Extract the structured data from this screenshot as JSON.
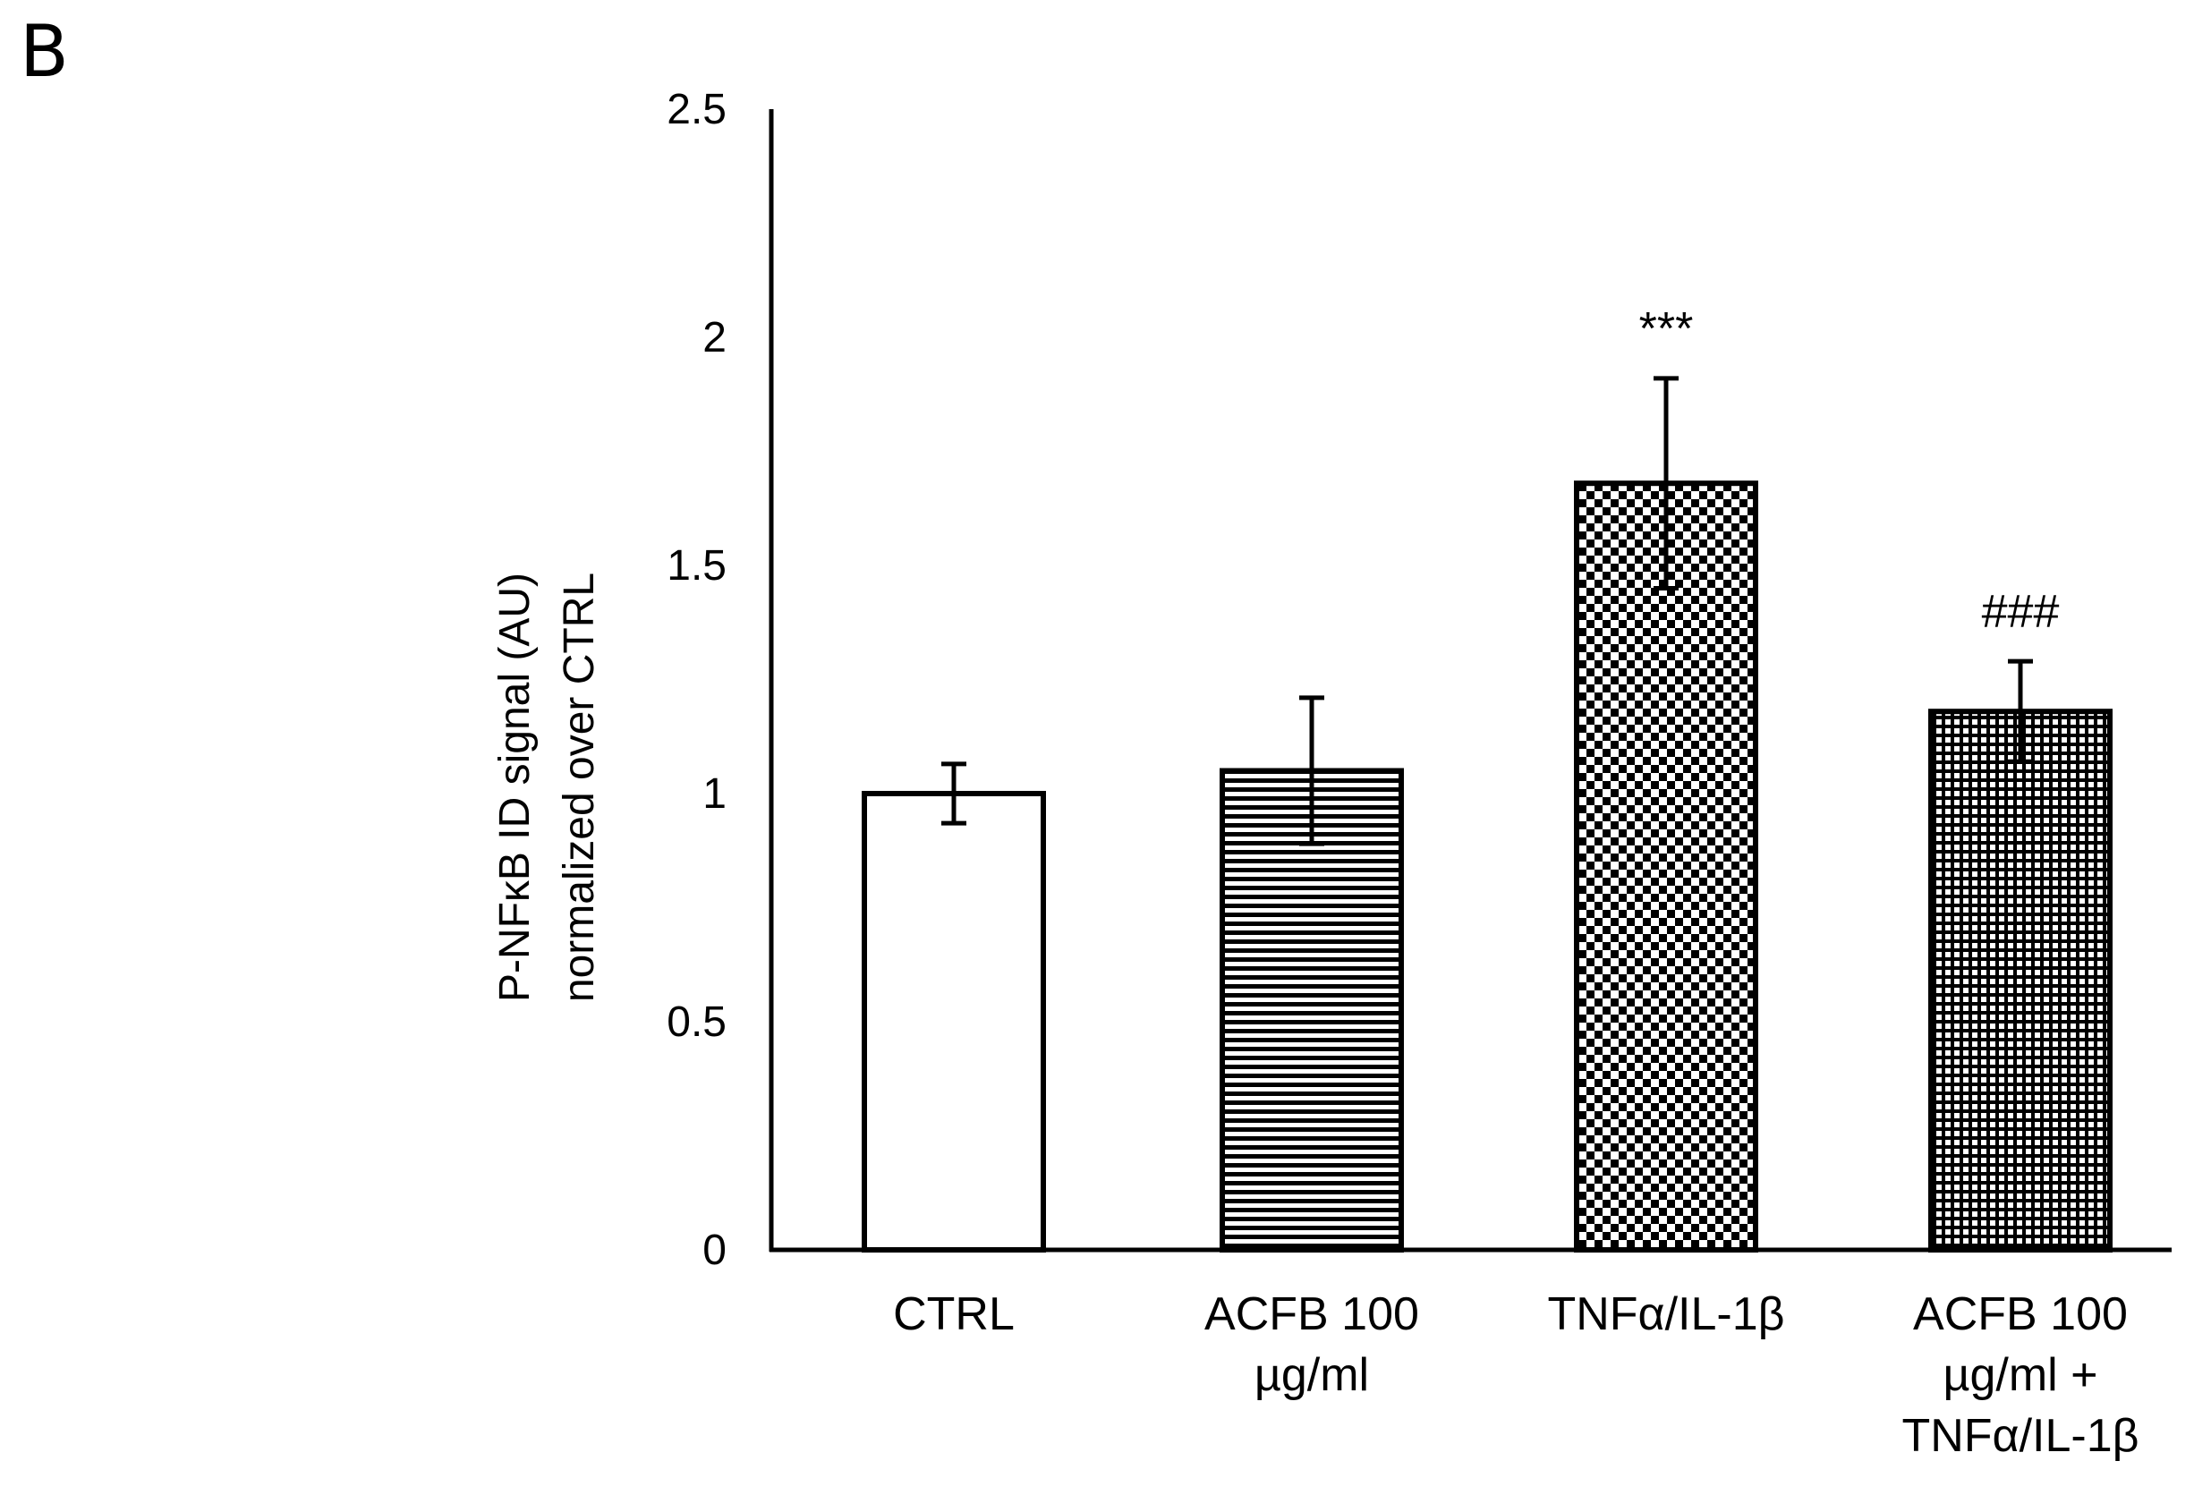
{
  "panel_label": "B",
  "chart_data": {
    "type": "bar",
    "title": "",
    "xlabel": "",
    "ylabel_lines": [
      "P-NFκB ID signal (AU)",
      "normalized over CTRL"
    ],
    "ylim": [
      0,
      2.5
    ],
    "yticks": [
      0,
      0.5,
      1,
      1.5,
      2,
      2.5
    ],
    "ytick_labels": [
      "0",
      "0.5",
      "1",
      "1.5",
      "2",
      "2.5"
    ],
    "grid": false,
    "categories": [
      {
        "label_lines": [
          "CTRL"
        ]
      },
      {
        "label_lines": [
          "ACFB 100",
          "µg/ml"
        ]
      },
      {
        "label_lines": [
          "TNFα/IL-1β"
        ]
      },
      {
        "label_lines": [
          "ACFB 100",
          "µg/ml +",
          "TNFα/IL-1β"
        ]
      }
    ],
    "values": [
      1.0,
      1.05,
      1.68,
      1.18
    ],
    "errors": [
      0.065,
      0.16,
      0.23,
      0.11
    ],
    "fill_patterns": [
      "solid-white",
      "horizontal-lines",
      "checkerboard",
      "fine-grid"
    ],
    "annotations": [
      "",
      "",
      "***",
      "###"
    ],
    "bar_edge_color": "#000000",
    "bar_fill_color": "#ffffff"
  }
}
